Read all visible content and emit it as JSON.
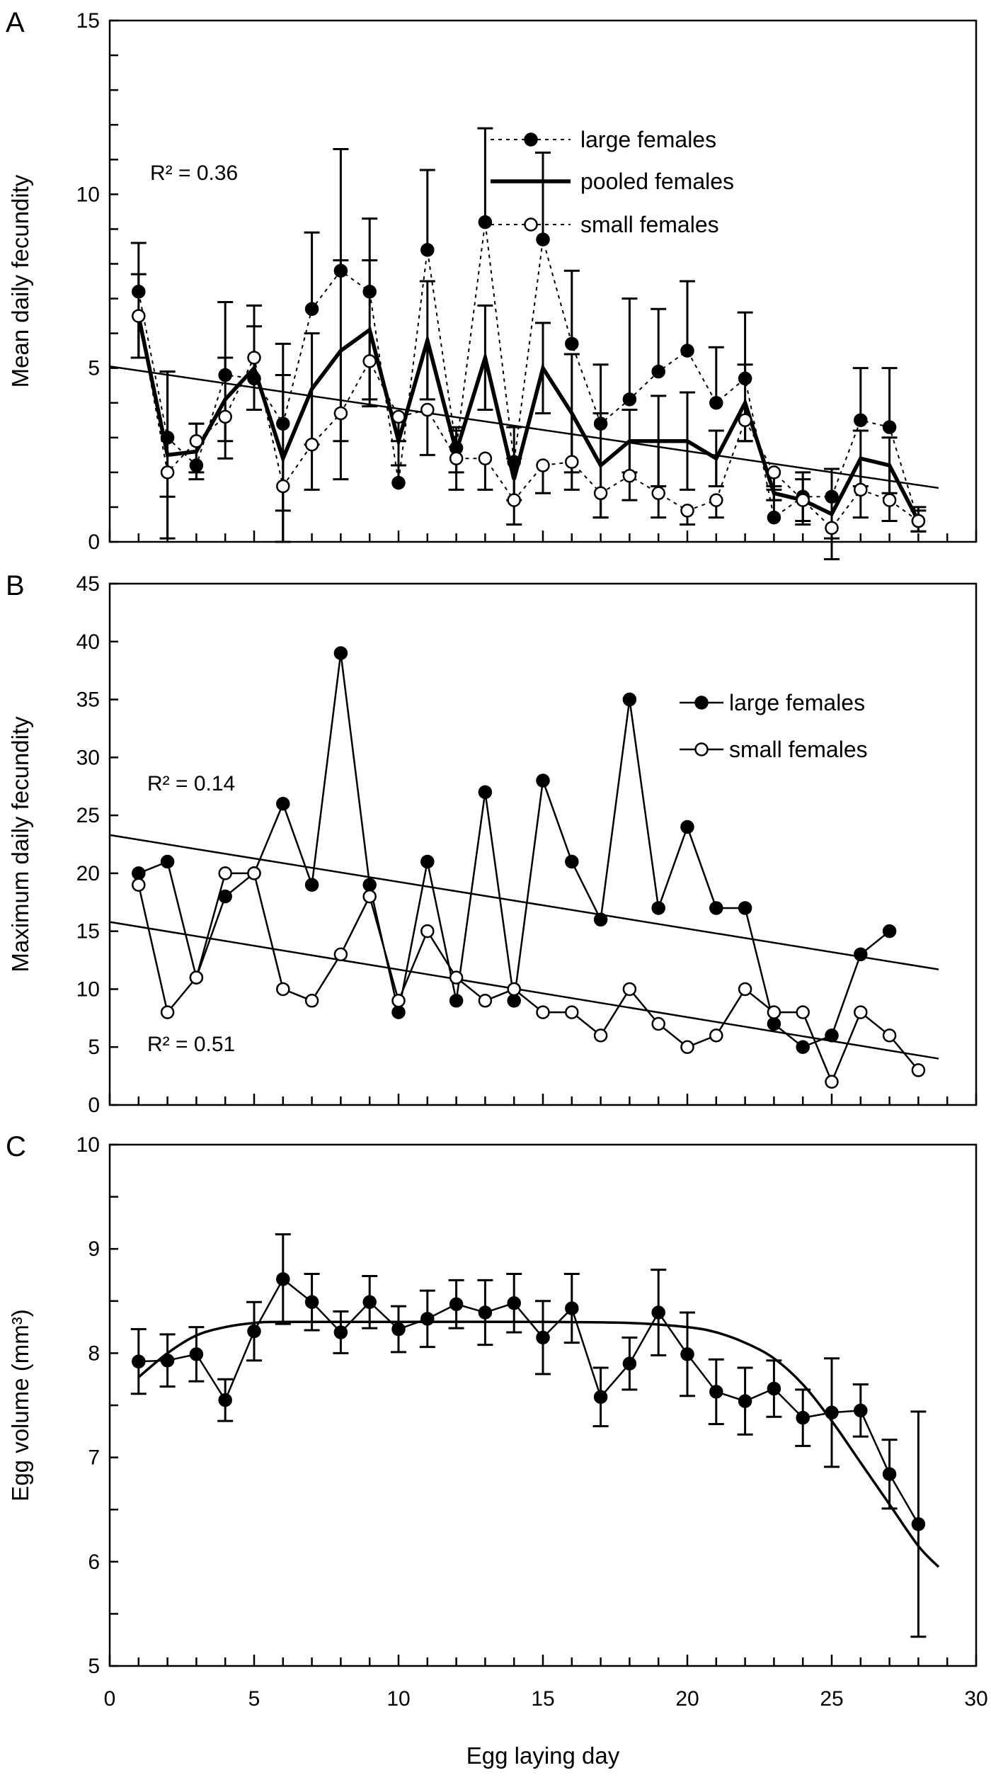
{
  "chart_data": [
    {
      "panel": "A",
      "type": "line",
      "ylabel": "Mean daily fecundity",
      "xlabel": "",
      "xlim": [
        0,
        30
      ],
      "ylim": [
        0,
        15
      ],
      "yticks": [
        0,
        5,
        10,
        15
      ],
      "xticks": [
        0,
        5,
        10,
        15,
        20,
        25,
        30
      ],
      "legend_position": "top-right",
      "annotation": "R² = 0.36",
      "x": [
        1,
        2,
        3,
        4,
        5,
        6,
        7,
        8,
        9,
        10,
        11,
        12,
        13,
        14,
        15,
        16,
        17,
        18,
        19,
        20,
        21,
        22,
        23,
        24,
        25,
        26,
        27,
        28
      ],
      "series": [
        {
          "name": "large females",
          "style": "dotted-filled",
          "values": [
            7.2,
            3.0,
            2.2,
            4.8,
            4.7,
            3.4,
            6.7,
            7.8,
            7.2,
            1.7,
            8.4,
            2.7,
            9.2,
            2.3,
            8.7,
            5.7,
            3.4,
            4.1,
            4.9,
            5.5,
            4.0,
            4.7,
            0.7,
            1.3,
            1.3,
            3.5,
            3.3,
            0.6
          ],
          "error_upper": [
            8.6,
            4.9,
            3.4,
            6.9,
            6.8,
            5.7,
            8.9,
            11.3,
            9.3,
            2.9,
            10.7,
            3.3,
            11.9,
            3.3,
            11.2,
            7.8,
            5.1,
            7.0,
            6.7,
            7.5,
            5.6,
            6.6,
            1.5,
            2.0,
            2.1,
            5.0,
            5.0,
            1.0
          ]
        },
        {
          "name": "pooled females",
          "style": "solid-thick",
          "values": [
            6.5,
            2.5,
            2.6,
            4.1,
            5.0,
            2.4,
            4.4,
            5.5,
            6.1,
            2.9,
            5.8,
            2.6,
            5.3,
            1.8,
            5.0,
            3.7,
            2.2,
            2.9,
            2.9,
            2.9,
            2.4,
            4.0,
            1.4,
            1.2,
            0.8,
            2.4,
            2.2,
            0.6
          ],
          "error": [
            1.2,
            2.4,
            0.8,
            1.2,
            1.2,
            2.4,
            1.6,
            2.6,
            2.0,
            0.7,
            1.7,
            0.6,
            1.5,
            0.6,
            1.3,
            1.7,
            1.5,
            0.9,
            1.3,
            1.4,
            0.8,
            1.1,
            0.2,
            0.6,
            1.3,
            0.8,
            0.8,
            0.3
          ]
        },
        {
          "name": "small females",
          "style": "dotted-open",
          "values": [
            6.5,
            2.0,
            2.9,
            3.6,
            5.3,
            1.6,
            2.8,
            3.7,
            5.2,
            3.6,
            3.8,
            2.4,
            2.4,
            1.2,
            2.2,
            2.3,
            1.4,
            1.9,
            1.4,
            0.9,
            1.2,
            3.5,
            2.0,
            1.2,
            0.4,
            1.5,
            1.2,
            0.6
          ],
          "error_lower": [
            5.3,
            1.3,
            2.0,
            2.4,
            3.8,
            0.9,
            1.5,
            1.8,
            3.9,
            2.2,
            2.5,
            1.5,
            1.5,
            0.5,
            1.4,
            1.5,
            0.7,
            1.2,
            0.7,
            0.5,
            0.7,
            2.9,
            1.2,
            0.5,
            0.1,
            0.7,
            0.6,
            0.3
          ]
        }
      ],
      "trendline": {
        "x": [
          0,
          28.7
        ],
        "y": [
          5.05,
          1.55
        ]
      }
    },
    {
      "panel": "B",
      "type": "line",
      "ylabel": "Maximum daily fecundity",
      "xlabel": "",
      "xlim": [
        0,
        30
      ],
      "ylim": [
        0,
        45
      ],
      "yticks": [
        0,
        5,
        10,
        15,
        20,
        25,
        30,
        35,
        40,
        45
      ],
      "xticks": [
        0,
        5,
        10,
        15,
        20,
        25,
        30
      ],
      "legend_position": "top-right",
      "series": [
        {
          "name": "large females",
          "style": "filled",
          "x": [
            1,
            2,
            3,
            4,
            5,
            6,
            7,
            8,
            9,
            10,
            11,
            12,
            13,
            14,
            15,
            16,
            17,
            18,
            19,
            20,
            21,
            22,
            23,
            24,
            25,
            26,
            27
          ],
          "values": [
            20,
            21,
            11,
            18,
            20,
            26,
            19,
            39,
            19,
            8,
            21,
            9,
            27,
            9,
            28,
            21,
            16,
            35,
            17,
            24,
            17,
            17,
            7,
            5,
            6,
            13,
            15
          ],
          "trendline": {
            "x": [
              0,
              28.7
            ],
            "y": [
              23.3,
              11.7
            ]
          },
          "r2_label": "R² = 0.14"
        },
        {
          "name": "small females",
          "style": "open",
          "x": [
            1,
            2,
            3,
            4,
            5,
            6,
            7,
            8,
            9,
            10,
            11,
            12,
            13,
            14,
            15,
            16,
            17,
            18,
            19,
            20,
            21,
            22,
            23,
            24,
            25,
            26,
            27,
            28
          ],
          "values": [
            19,
            8,
            11,
            20,
            20,
            10,
            9,
            13,
            18,
            9,
            15,
            11,
            9,
            10,
            8,
            8,
            6,
            10,
            7,
            5,
            6,
            10,
            8,
            8,
            2,
            8,
            6,
            3
          ],
          "trendline": {
            "x": [
              0,
              28.7
            ],
            "y": [
              15.8,
              4.0
            ]
          },
          "r2_label": "R² = 0.51"
        }
      ]
    },
    {
      "panel": "C",
      "type": "line",
      "ylabel": "Egg volume (mm³)",
      "xlabel": "Egg laying day",
      "xlim": [
        0,
        30
      ],
      "ylim": [
        5,
        10
      ],
      "yticks": [
        5,
        6,
        7,
        8,
        9,
        10
      ],
      "xticks": [
        0,
        5,
        10,
        15,
        20,
        25,
        30
      ],
      "x": [
        1,
        2,
        3,
        4,
        5,
        6,
        7,
        8,
        9,
        10,
        11,
        12,
        13,
        14,
        15,
        16,
        17,
        18,
        19,
        20,
        21,
        22,
        23,
        24,
        25,
        26,
        27,
        28
      ],
      "values": [
        7.92,
        7.93,
        7.99,
        7.55,
        8.21,
        8.71,
        8.49,
        8.2,
        8.49,
        8.23,
        8.33,
        8.47,
        8.39,
        8.48,
        8.15,
        8.43,
        7.58,
        7.9,
        8.39,
        7.99,
        7.63,
        7.54,
        7.66,
        7.38,
        7.43,
        7.45,
        6.84,
        6.36
      ],
      "error": [
        0.31,
        0.25,
        0.26,
        0.2,
        0.28,
        0.43,
        0.27,
        0.2,
        0.25,
        0.22,
        0.27,
        0.23,
        0.31,
        0.28,
        0.35,
        0.33,
        0.28,
        0.25,
        0.41,
        0.4,
        0.31,
        0.32,
        0.27,
        0.27,
        0.52,
        0.25,
        0.33,
        1.08
      ],
      "fitted_curve": {
        "x": [
          1,
          2,
          3,
          4,
          5,
          6,
          10,
          15,
          18,
          20,
          21,
          22,
          23,
          24,
          25,
          26,
          27,
          28,
          28.7
        ],
        "y": [
          7.77,
          8.0,
          8.17,
          8.25,
          8.29,
          8.3,
          8.3,
          8.3,
          8.29,
          8.25,
          8.2,
          8.1,
          7.95,
          7.7,
          7.35,
          6.95,
          6.55,
          6.15,
          5.95
        ]
      }
    }
  ],
  "panel_letters": [
    "A",
    "B",
    "C"
  ]
}
